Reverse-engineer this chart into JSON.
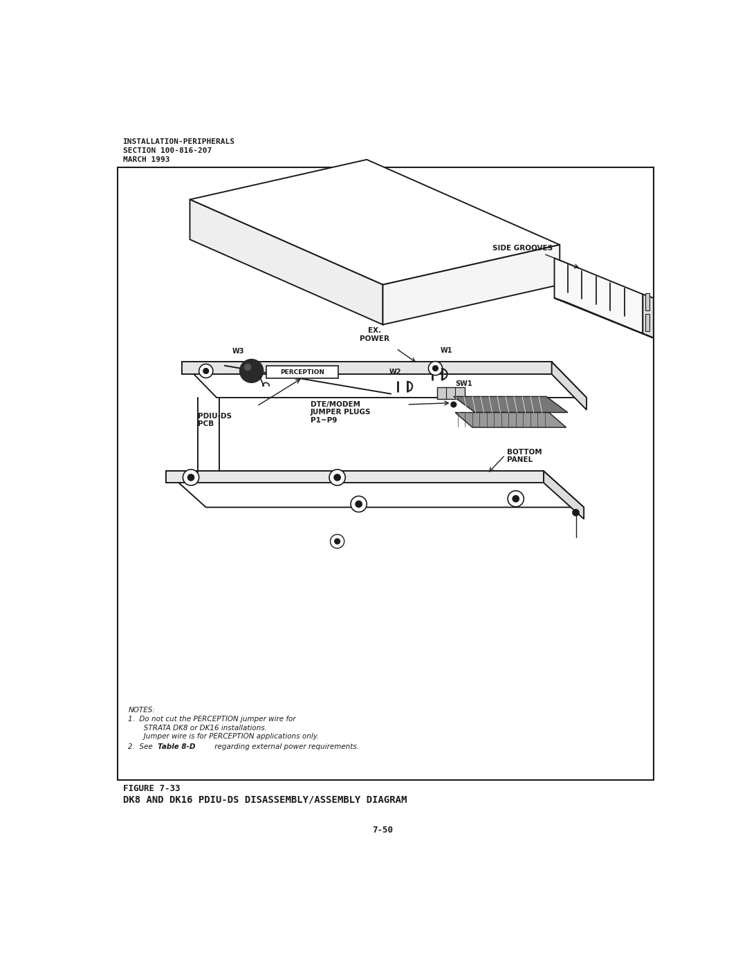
{
  "bg_color": "#ffffff",
  "border_color": "#1a1a1a",
  "header_line1": "INSTALLATION-PERIPHERALS",
  "header_line2": "SECTION 100-816-207",
  "header_line3": "MARCH 1993",
  "figure_label": "FIGURE 7-33",
  "figure_title": "DK8 AND DK16 PDIU-DS DISASSEMBLY/ASSEMBLY DIAGRAM",
  "page_number": "7-50",
  "notes_title": "NOTES:",
  "labels": {
    "side_grooves": "SIDE GROOVES",
    "ex_power": "EX.\nPOWER",
    "w1": "W1",
    "w2": "W2",
    "w3": "W3",
    "sw1": "SW1",
    "perception": "PERCEPTION",
    "dte_modem": "DTE/MODEM\nJUMPER PLUGS\nP1~P9",
    "pdiu_ds": "PDIU-DS\nPCB",
    "bottom_panel": "BOTTOM\nPANEL"
  }
}
